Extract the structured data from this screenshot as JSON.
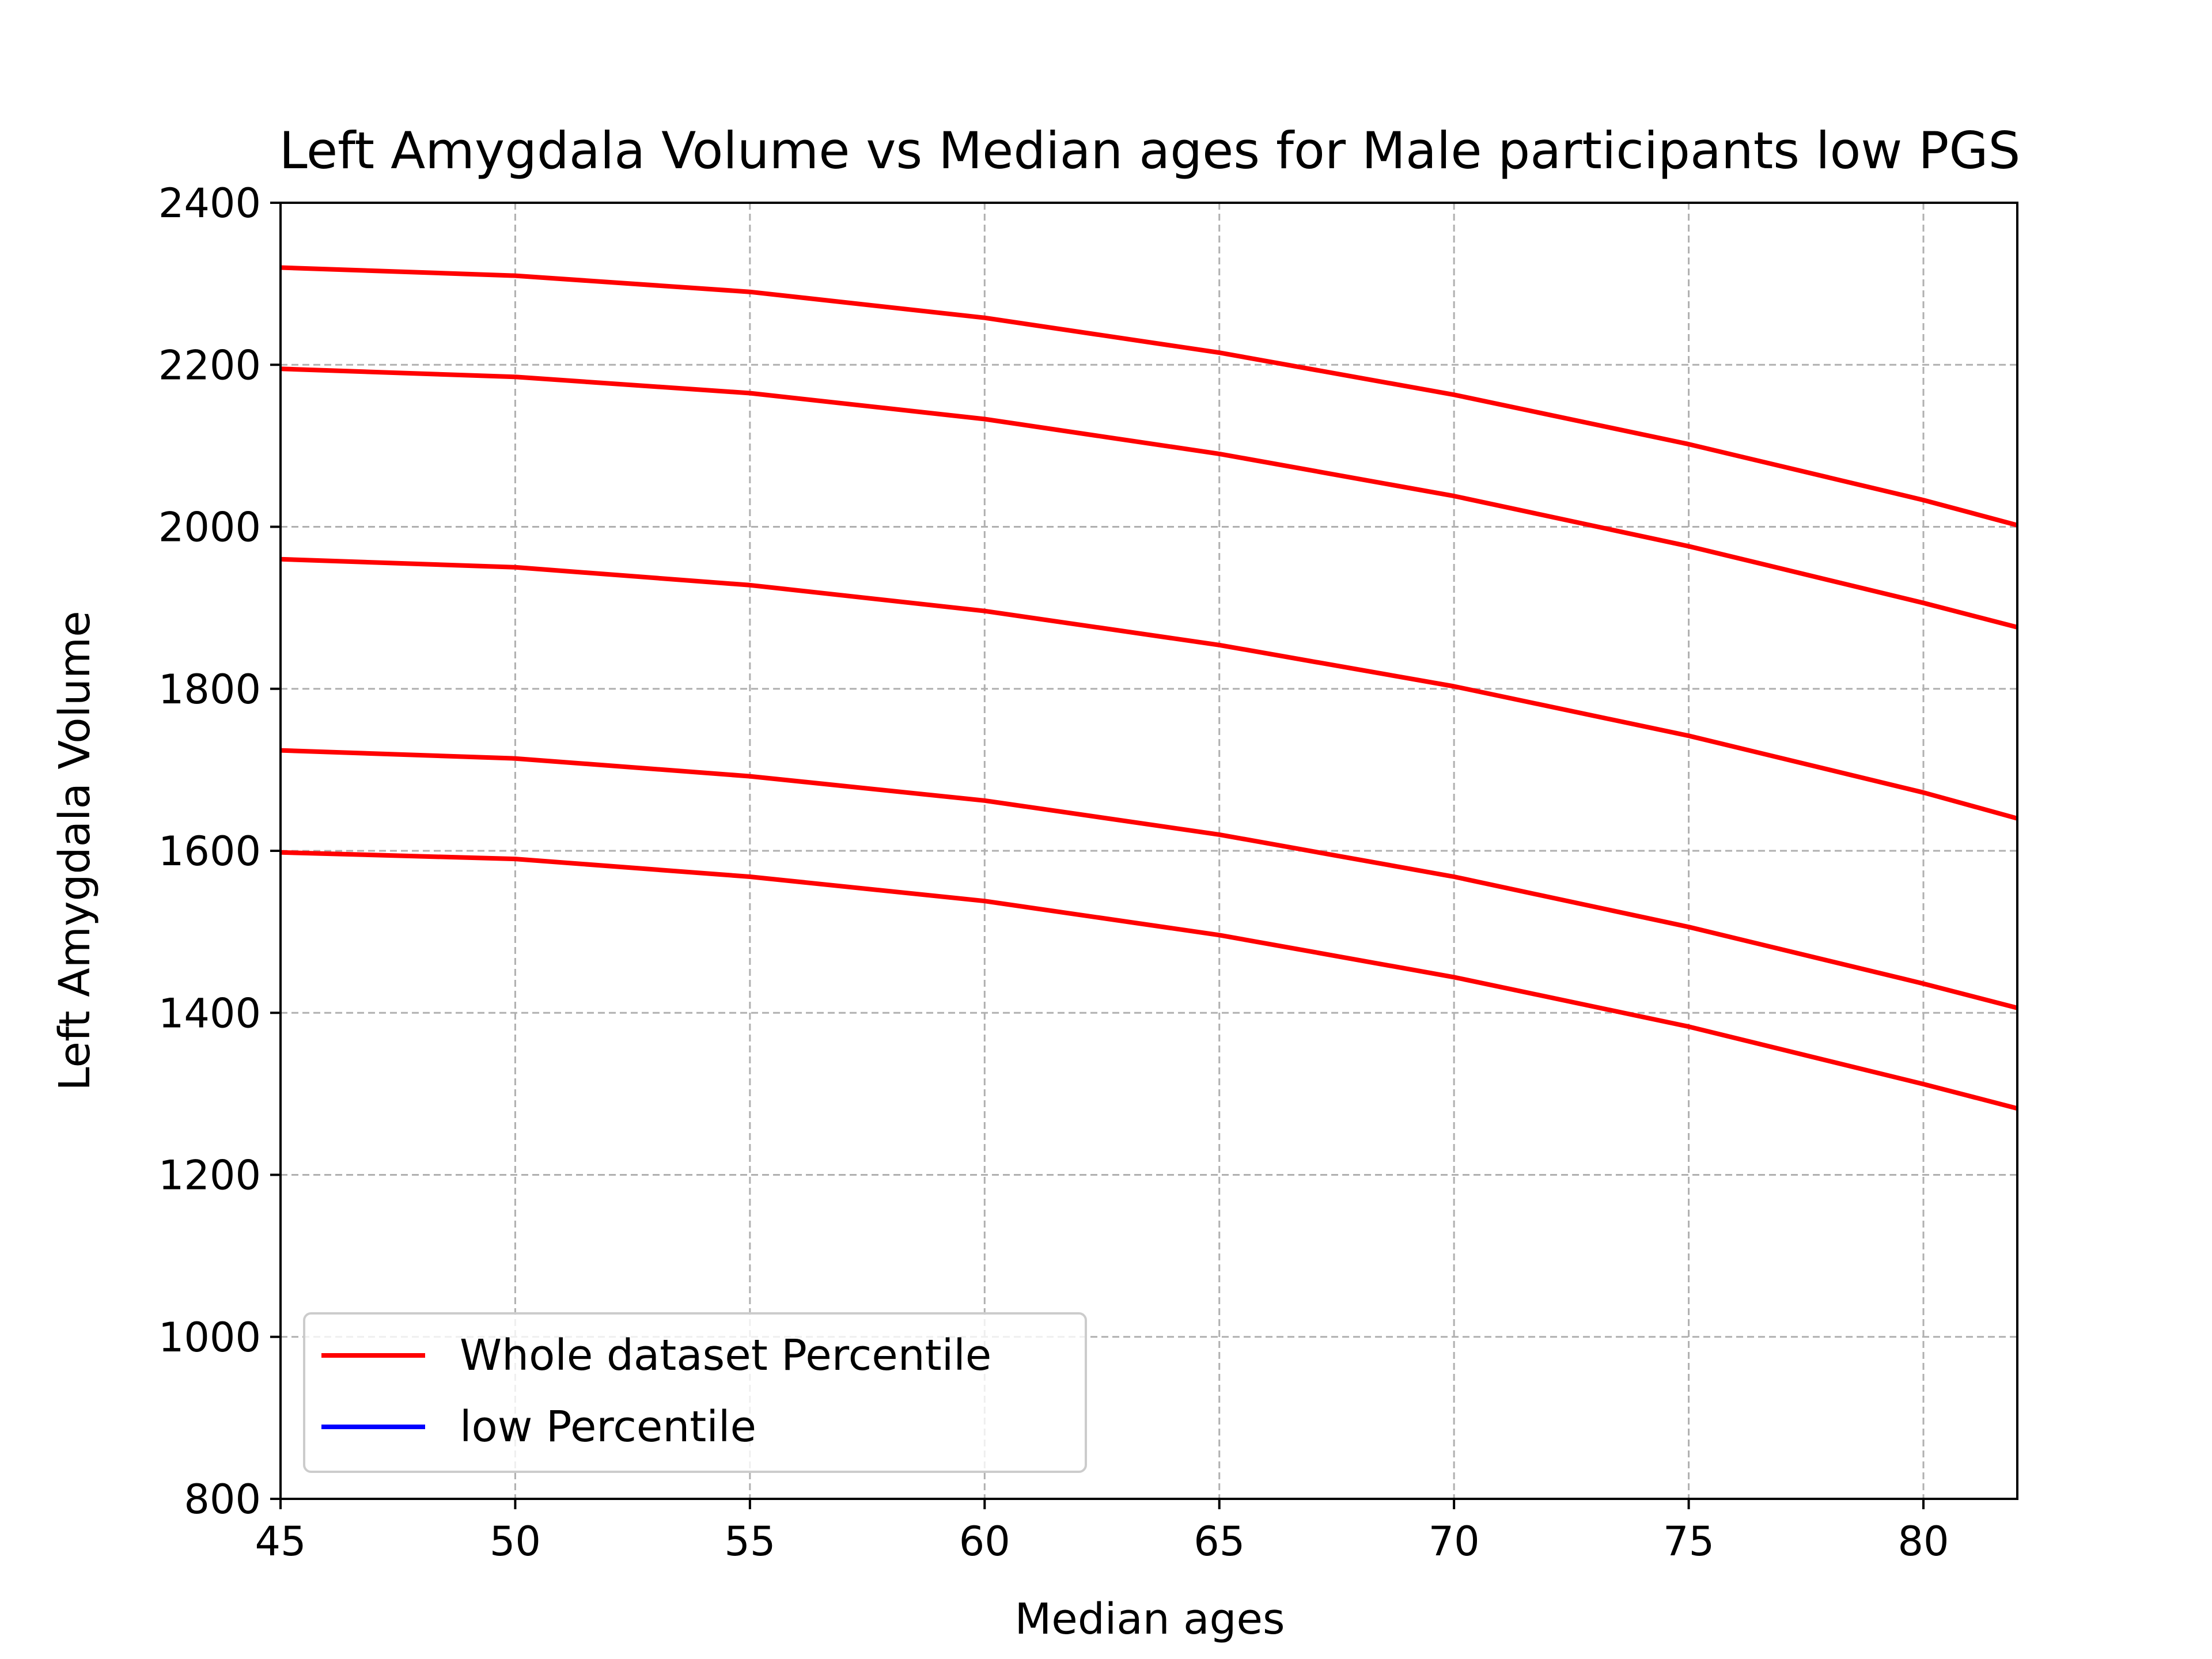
{
  "chart_data": {
    "type": "line",
    "title": "Left Amygdala Volume vs Median ages for Male participants low PGS",
    "xlabel": "Median ages",
    "ylabel": "Left Amygdala Volume",
    "xlim": [
      45,
      82
    ],
    "ylim": [
      800,
      2400
    ],
    "xticks": [
      45,
      50,
      55,
      60,
      65,
      70,
      75,
      80
    ],
    "yticks": [
      800,
      1000,
      1200,
      1400,
      1600,
      1800,
      2000,
      2200,
      2400
    ],
    "grid": true,
    "legend": {
      "placement": "lower-left",
      "entries": [
        {
          "label": "Whole dataset Percentile",
          "color": "#ff0000"
        },
        {
          "label": "low Percentile",
          "color": "#0000ff"
        }
      ]
    },
    "x": [
      45,
      50,
      55,
      60,
      65,
      70,
      75,
      80,
      82
    ],
    "series": [
      {
        "color": "#ff0000",
        "values": [
          2320,
          2310,
          2290,
          2258,
          2215,
          2163,
          2102,
          2033,
          2002
        ]
      },
      {
        "color": "#ff0000",
        "values": [
          2195,
          2185,
          2165,
          2133,
          2090,
          2038,
          1976,
          1906,
          1876
        ]
      },
      {
        "color": "#ff0000",
        "values": [
          1960,
          1950,
          1928,
          1896,
          1854,
          1803,
          1742,
          1672,
          1640
        ]
      },
      {
        "color": "#ff0000",
        "values": [
          1724,
          1714,
          1692,
          1662,
          1620,
          1568,
          1506,
          1436,
          1406
        ]
      },
      {
        "color": "#ff0000",
        "values": [
          1598,
          1590,
          1568,
          1538,
          1496,
          1444,
          1383,
          1312,
          1282
        ]
      }
    ]
  }
}
